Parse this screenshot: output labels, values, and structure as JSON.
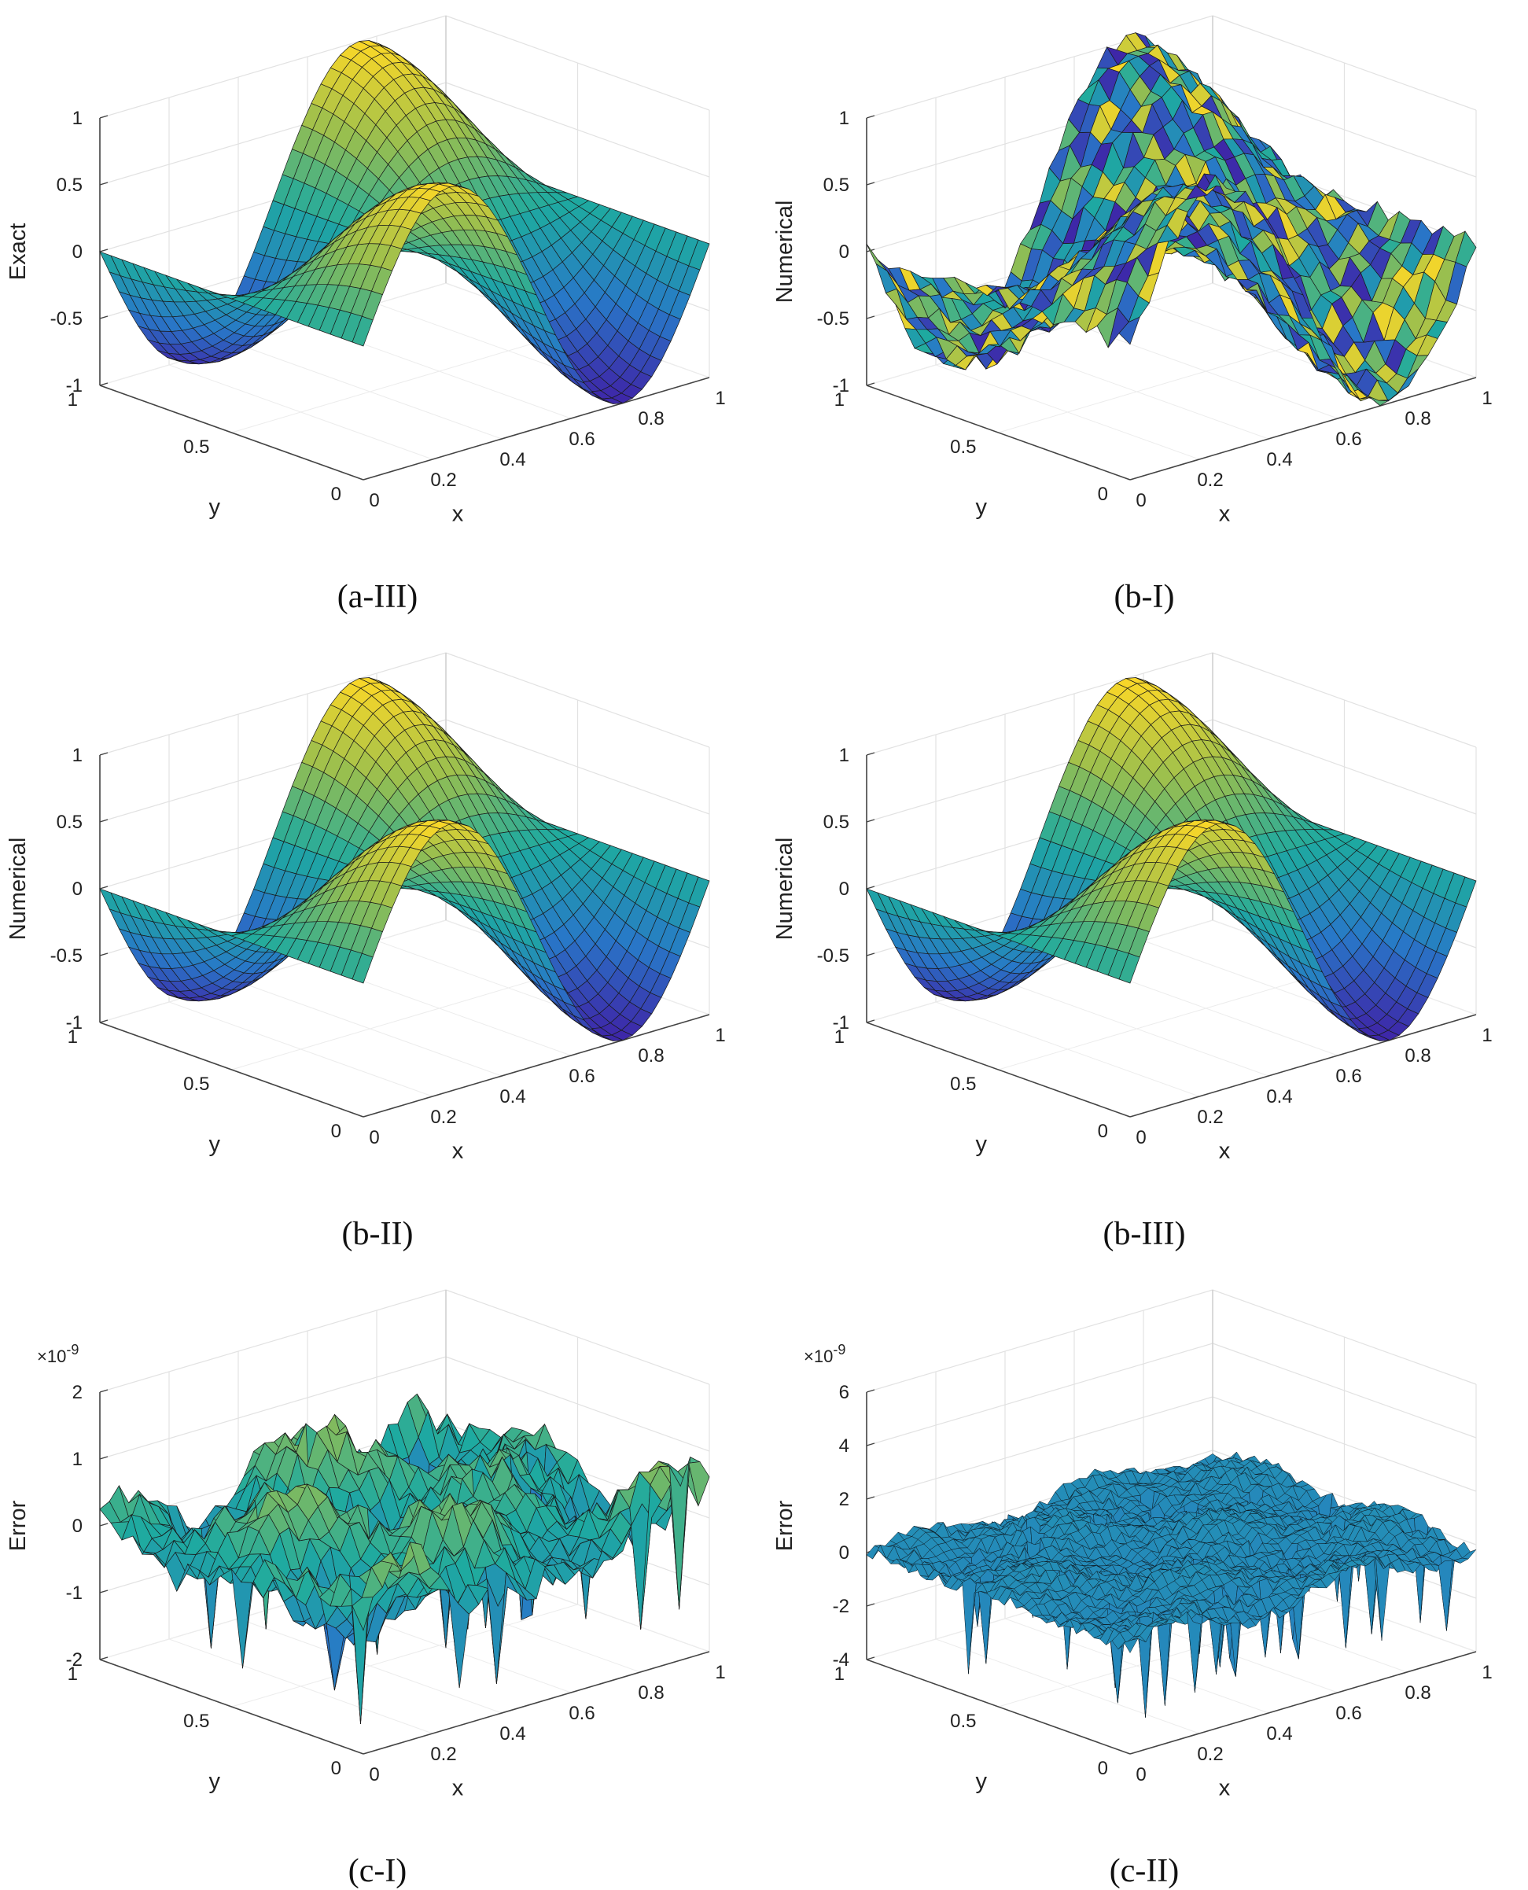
{
  "figure": {
    "panels": [
      {
        "id": "a-III",
        "caption": "(a-III)",
        "kind": "smooth",
        "zlabel": "Exact",
        "zticks": [
          "1",
          "0.5",
          "0",
          "-0.5",
          "-1"
        ],
        "xlabel": "x",
        "xticks": [
          "0",
          "0.2",
          "0.4",
          "0.6",
          "0.8",
          "1"
        ],
        "ylabel": "y",
        "yticks": [
          "0",
          "0.5",
          "1"
        ]
      },
      {
        "id": "b-I",
        "caption": "(b-I)",
        "kind": "noisy",
        "zlabel": "Numerical",
        "zticks": [
          "1",
          "0.5",
          "0",
          "-0.5",
          "-1"
        ],
        "xlabel": "x",
        "xticks": [
          "0",
          "0.2",
          "0.4",
          "0.6",
          "0.8",
          "1"
        ],
        "ylabel": "y",
        "yticks": [
          "0",
          "0.5",
          "1"
        ]
      },
      {
        "id": "b-II",
        "caption": "(b-II)",
        "kind": "smooth",
        "zlabel": "Numerical",
        "zticks": [
          "1",
          "0.5",
          "0",
          "-0.5",
          "-1"
        ],
        "xlabel": "x",
        "xticks": [
          "0",
          "0.2",
          "0.4",
          "0.6",
          "0.8",
          "1"
        ],
        "ylabel": "y",
        "yticks": [
          "0",
          "0.5",
          "1"
        ]
      },
      {
        "id": "b-III",
        "caption": "(b-III)",
        "kind": "smooth",
        "zlabel": "Numerical",
        "zticks": [
          "1",
          "0.5",
          "0",
          "-0.5",
          "-1"
        ],
        "xlabel": "x",
        "xticks": [
          "0",
          "0.2",
          "0.4",
          "0.6",
          "0.8",
          "1"
        ],
        "ylabel": "y",
        "yticks": [
          "0",
          "0.5",
          "1"
        ]
      },
      {
        "id": "c-I",
        "caption": "(c-I)",
        "kind": "error",
        "zlabel": "Error",
        "zticks": [
          "2",
          "1",
          "0",
          "-1",
          "-2"
        ],
        "multiplier": "×10",
        "exponent": "-9",
        "xlabel": "x",
        "xticks": [
          "0",
          "0.2",
          "0.4",
          "0.6",
          "0.8",
          "1"
        ],
        "ylabel": "y",
        "yticks": [
          "0",
          "0.5",
          "1"
        ]
      },
      {
        "id": "c-II",
        "caption": "(c-II)",
        "kind": "error2",
        "zlabel": "Error",
        "zticks": [
          "6",
          "4",
          "2",
          "0",
          "-2",
          "-4"
        ],
        "multiplier": "×10",
        "exponent": "-9",
        "xlabel": "x",
        "xticks": [
          "0",
          "0.2",
          "0.4",
          "0.6",
          "0.8",
          "1"
        ],
        "ylabel": "y",
        "yticks": [
          "0",
          "0.5",
          "1"
        ]
      }
    ]
  },
  "chart_data": [
    {
      "type": "surface",
      "title": "(a-III)",
      "xlabel": "x",
      "ylabel": "y",
      "zlabel": "Exact",
      "xlim": [
        0,
        1
      ],
      "ylim": [
        0,
        1
      ],
      "zlim": [
        -1,
        1
      ],
      "function": "sin(2πx)·cos(πy)",
      "grid": true
    },
    {
      "type": "surface",
      "title": "(b-I)",
      "xlabel": "x",
      "ylabel": "y",
      "zlabel": "Numerical",
      "xlim": [
        0,
        1
      ],
      "ylim": [
        0,
        1
      ],
      "zlim": [
        -1,
        1
      ],
      "function": "sin(2πx)·cos(πy) (coarse, faceted)",
      "grid": true
    },
    {
      "type": "surface",
      "title": "(b-II)",
      "xlabel": "x",
      "ylabel": "y",
      "zlabel": "Numerical",
      "xlim": [
        0,
        1
      ],
      "ylim": [
        0,
        1
      ],
      "zlim": [
        -1,
        1
      ],
      "function": "sin(2πx)·cos(πy)",
      "grid": true
    },
    {
      "type": "surface",
      "title": "(b-III)",
      "xlabel": "x",
      "ylabel": "y",
      "zlabel": "Numerical",
      "xlim": [
        0,
        1
      ],
      "ylim": [
        0,
        1
      ],
      "zlim": [
        -1,
        1
      ],
      "function": "sin(2πx)·cos(πy)",
      "grid": true
    },
    {
      "type": "surface",
      "title": "(c-I)",
      "xlabel": "x",
      "ylabel": "y",
      "zlabel": "Error",
      "xlim": [
        0,
        1
      ],
      "ylim": [
        0,
        1
      ],
      "zlim": [
        -2e-09,
        2e-09
      ],
      "scale_exponent": -9,
      "grid": true
    },
    {
      "type": "surface",
      "title": "(c-II)",
      "xlabel": "x",
      "ylabel": "y",
      "zlabel": "Error",
      "xlim": [
        0,
        1
      ],
      "ylim": [
        0,
        1
      ],
      "zlim": [
        -4e-09,
        6e-09
      ],
      "scale_exponent": -9,
      "grid": true
    }
  ]
}
